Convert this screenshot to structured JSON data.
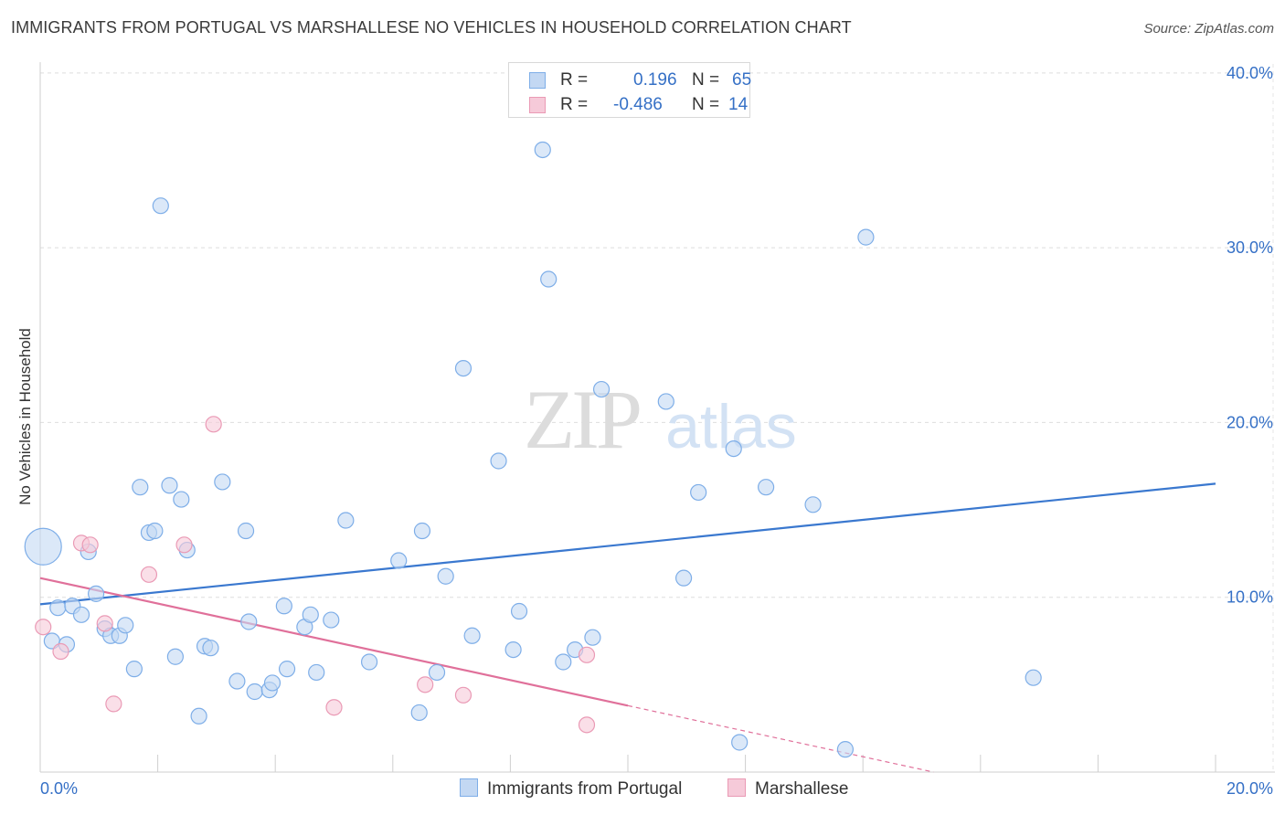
{
  "header": {
    "title": "IMMIGRANTS FROM PORTUGAL VS MARSHALLESE NO VEHICLES IN HOUSEHOLD CORRELATION CHART",
    "source": "Source: ZipAtlas.com"
  },
  "watermark": {
    "zip": "ZIP",
    "atlas": "atlas"
  },
  "legend": {
    "r_label": "R =",
    "n_label": "N =",
    "series": [
      {
        "name": "Immigrants from Portugal",
        "r": "0.196",
        "n": "65",
        "color": "#7eaee8",
        "fill": "#c3d8f3"
      },
      {
        "name": "Marshallese",
        "r": "-0.486",
        "n": "14",
        "color": "#ea9ab5",
        "fill": "#f6cad9"
      }
    ]
  },
  "chart_data": {
    "type": "scatter",
    "title": "IMMIGRANTS FROM PORTUGAL VS MARSHALLESE NO VEHICLES IN HOUSEHOLD CORRELATION CHART",
    "xlabel": "",
    "ylabel": "No Vehicles in Household",
    "xlim": [
      0,
      20
    ],
    "ylim": [
      0,
      40
    ],
    "x_tick_labels": [
      "0.0%",
      "20.0%"
    ],
    "y_tick_labels": [
      "10.0%",
      "20.0%",
      "30.0%",
      "40.0%"
    ],
    "y_ticks": [
      10,
      20,
      30,
      40
    ],
    "grid": true,
    "legend_position": "top-center",
    "series": [
      {
        "name": "Immigrants from Portugal",
        "color": "#3a78cf",
        "points": [
          [
            0.05,
            12.9
          ],
          [
            0.2,
            7.5
          ],
          [
            0.3,
            9.4
          ],
          [
            0.45,
            7.3
          ],
          [
            0.55,
            9.5
          ],
          [
            0.7,
            9.0
          ],
          [
            0.82,
            12.6
          ],
          [
            0.95,
            10.2
          ],
          [
            1.1,
            8.2
          ],
          [
            1.2,
            7.8
          ],
          [
            1.35,
            7.8
          ],
          [
            1.45,
            8.4
          ],
          [
            1.6,
            5.9
          ],
          [
            1.7,
            16.3
          ],
          [
            1.85,
            13.7
          ],
          [
            1.95,
            13.8
          ],
          [
            2.05,
            32.4
          ],
          [
            2.2,
            16.4
          ],
          [
            2.3,
            6.6
          ],
          [
            2.4,
            15.6
          ],
          [
            2.5,
            12.7
          ],
          [
            2.7,
            3.2
          ],
          [
            2.8,
            7.2
          ],
          [
            2.9,
            7.1
          ],
          [
            3.1,
            16.6
          ],
          [
            3.35,
            5.2
          ],
          [
            3.5,
            13.8
          ],
          [
            3.55,
            8.6
          ],
          [
            3.65,
            4.6
          ],
          [
            3.9,
            4.7
          ],
          [
            3.95,
            5.1
          ],
          [
            4.15,
            9.5
          ],
          [
            4.2,
            5.9
          ],
          [
            4.5,
            8.3
          ],
          [
            4.6,
            9.0
          ],
          [
            4.7,
            5.7
          ],
          [
            4.95,
            8.7
          ],
          [
            5.2,
            14.4
          ],
          [
            5.6,
            6.3
          ],
          [
            6.1,
            12.1
          ],
          [
            6.45,
            3.4
          ],
          [
            6.5,
            13.8
          ],
          [
            6.75,
            5.7
          ],
          [
            6.9,
            11.2
          ],
          [
            7.2,
            23.1
          ],
          [
            7.35,
            7.8
          ],
          [
            7.8,
            17.8
          ],
          [
            8.05,
            7.0
          ],
          [
            8.15,
            9.2
          ],
          [
            8.55,
            35.6
          ],
          [
            8.65,
            28.2
          ],
          [
            8.9,
            6.3
          ],
          [
            9.1,
            7.0
          ],
          [
            9.4,
            7.7
          ],
          [
            9.55,
            21.9
          ],
          [
            10.65,
            21.2
          ],
          [
            10.95,
            11.1
          ],
          [
            11.2,
            16.0
          ],
          [
            11.8,
            18.5
          ],
          [
            12.35,
            16.3
          ],
          [
            13.15,
            15.3
          ],
          [
            13.7,
            1.3
          ],
          [
            14.05,
            30.6
          ],
          [
            16.9,
            5.4
          ],
          [
            11.9,
            1.7
          ]
        ],
        "trend": {
          "x1": 0,
          "y1": 9.6,
          "x2": 20,
          "y2": 16.5
        }
      },
      {
        "name": "Marshallese",
        "color": "#e0709a",
        "points": [
          [
            0.05,
            8.3
          ],
          [
            0.35,
            6.9
          ],
          [
            0.7,
            13.1
          ],
          [
            0.85,
            13.0
          ],
          [
            1.1,
            8.5
          ],
          [
            1.25,
            3.9
          ],
          [
            1.85,
            11.3
          ],
          [
            2.45,
            13.0
          ],
          [
            2.95,
            19.9
          ],
          [
            5.0,
            3.7
          ],
          [
            6.55,
            5.0
          ],
          [
            7.2,
            4.4
          ],
          [
            9.3,
            6.7
          ],
          [
            9.3,
            2.7
          ]
        ],
        "trend": {
          "x1": 0,
          "y1": 11.1,
          "x2": 10,
          "y2": 3.8,
          "dash_to_x": 15.2,
          "dash_to_y": 0
        }
      }
    ]
  }
}
